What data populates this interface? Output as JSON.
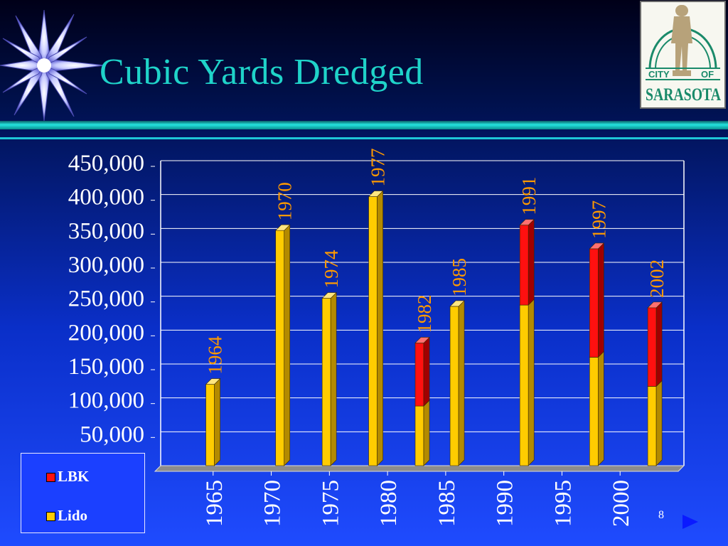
{
  "slide": {
    "title": "Cubic Yards Dredged",
    "page_number": "8",
    "logo": {
      "top_left": "CITY",
      "top_right": "OF",
      "name": "SARASOTA"
    }
  },
  "colors": {
    "title": "#1fd3c9",
    "lbk": "#ff1010",
    "lido": "#ffcc00",
    "bar_label": "#ff9a00"
  },
  "legend": [
    {
      "name": "LBK",
      "color": "#ff1010"
    },
    {
      "name": "Lido",
      "color": "#ffcc00"
    }
  ],
  "chart_data": {
    "type": "bar",
    "stacked": true,
    "title": "Cubic Yards Dredged",
    "xlabel": "",
    "ylabel": "",
    "xlim": [
      1960,
      2005
    ],
    "ylim": [
      0,
      450000
    ],
    "y_ticks": [
      "50,000",
      "100,000",
      "150,000",
      "200,000",
      "250,000",
      "300,000",
      "350,000",
      "400,000",
      "450,000"
    ],
    "x_ticks": [
      "1965",
      "1970",
      "1975",
      "1980",
      "1985",
      "1990",
      "1995",
      "2000"
    ],
    "x_tick_values": [
      1965,
      1970,
      1975,
      1980,
      1985,
      1990,
      1995,
      2000
    ],
    "legend_position": "bottom-left",
    "grid": true,
    "bars": [
      {
        "label": "1964",
        "x": 1964.5,
        "lido": 120000,
        "lbk": 0
      },
      {
        "label": "1970",
        "x": 1970.5,
        "lido": 347000,
        "lbk": 0
      },
      {
        "label": "1974",
        "x": 1974.5,
        "lido": 247000,
        "lbk": 0
      },
      {
        "label": "1977",
        "x": 1978.5,
        "lido": 397000,
        "lbk": 0
      },
      {
        "label": "1982",
        "x": 1982.5,
        "lido": 88000,
        "lbk": 93000
      },
      {
        "label": "1985",
        "x": 1985.5,
        "lido": 235000,
        "lbk": 0
      },
      {
        "label": "1991",
        "x": 1991.5,
        "lido": 237000,
        "lbk": 118000
      },
      {
        "label": "1997",
        "x": 1997.5,
        "lido": 160000,
        "lbk": 160000
      },
      {
        "label": "2002",
        "x": 2002.5,
        "lido": 117000,
        "lbk": 116000
      }
    ]
  }
}
